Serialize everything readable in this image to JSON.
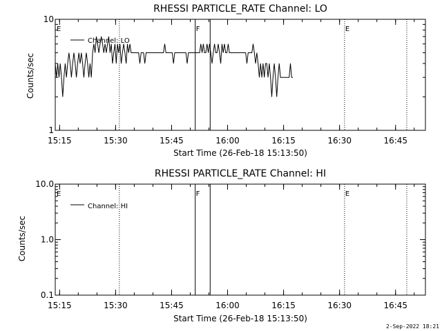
{
  "footer_timestamp": "2-Sep-2022 18:21",
  "chart_data": [
    {
      "type": "line",
      "title": "RHESSI PARTICLE_RATE Channel: LO",
      "xlabel": "Start Time (26-Feb-18 15:13:50)",
      "ylabel": "Counts/sec",
      "yscale": "log",
      "ylim": [
        1,
        10
      ],
      "xlim": [
        "15:13:50",
        "16:53:00"
      ],
      "x_ticks": [
        "15:15",
        "15:30",
        "15:45",
        "16:00",
        "16:15",
        "16:30",
        "16:45"
      ],
      "y_ticks": [
        "1",
        "10"
      ],
      "legend": {
        "label": "Channel: LO",
        "placement": "top-left"
      },
      "series": [
        {
          "name": "Channel: LO",
          "x_start": "15:13:50",
          "x_step_seconds": 20,
          "values": [
            4,
            3,
            4,
            3,
            4,
            3,
            2,
            3,
            4,
            3,
            4,
            5,
            4,
            3,
            4,
            5,
            4,
            3,
            4,
            5,
            4,
            5,
            4,
            3,
            4,
            5,
            4,
            3,
            4,
            3,
            5,
            6,
            5,
            7,
            6,
            5,
            6,
            7,
            6,
            5,
            6,
            5,
            6,
            7,
            5,
            6,
            4,
            5,
            6,
            4,
            6,
            5,
            6,
            4,
            5,
            6,
            5,
            4,
            6,
            5,
            6,
            5,
            5,
            5,
            5,
            5,
            5,
            5,
            4,
            5,
            5,
            5,
            4,
            5,
            5,
            5,
            5,
            5,
            5,
            5,
            5,
            5,
            5,
            5,
            5,
            5,
            5,
            5,
            6,
            5,
            5,
            5,
            5,
            5,
            5,
            4,
            5,
            5,
            5,
            5,
            5,
            5,
            5,
            5,
            5,
            5,
            4,
            5,
            5,
            5,
            5,
            5,
            5,
            5,
            5,
            5,
            5,
            6,
            5,
            6,
            5,
            5,
            6,
            5,
            6,
            5,
            4,
            5,
            6,
            5,
            5,
            6,
            5,
            4,
            6,
            5,
            6,
            5,
            5,
            6,
            5,
            5,
            5,
            5,
            5,
            5,
            5,
            5,
            5,
            5,
            5,
            5,
            5,
            5,
            4,
            5,
            5,
            5,
            5,
            6,
            5,
            4,
            5,
            4,
            3,
            4,
            3,
            4,
            3,
            4,
            4,
            3,
            4,
            3,
            2,
            3,
            4,
            3,
            2,
            3,
            4,
            3,
            3,
            3,
            3,
            3,
            3,
            3,
            3,
            4,
            3,
            3
          ]
        }
      ],
      "annotations": [
        {
          "label": "E",
          "time": "15:13:50",
          "style": "marker"
        },
        {
          "time": "15:31:00",
          "style": "dotted"
        },
        {
          "label": "F",
          "time": "15:51:20",
          "style": "solid"
        },
        {
          "time": "15:55:20",
          "style": "solid"
        },
        {
          "label": "E",
          "time": "16:31:20",
          "style": "dotted"
        },
        {
          "time": "16:48:00",
          "style": "dotted"
        }
      ]
    },
    {
      "type": "line",
      "title": "RHESSI PARTICLE_RATE Channel: HI",
      "xlabel": "Start Time (26-Feb-18 15:13:50)",
      "ylabel": "Counts/sec",
      "yscale": "log",
      "ylim": [
        0.1,
        10
      ],
      "xlim": [
        "15:13:50",
        "16:53:00"
      ],
      "x_ticks": [
        "15:15",
        "15:30",
        "15:45",
        "16:00",
        "16:15",
        "16:30",
        "16:45"
      ],
      "y_ticks": [
        "0.1",
        "1.0",
        "10.0"
      ],
      "legend": {
        "label": "Channel: HI",
        "placement": "top-left"
      },
      "series": [
        {
          "name": "Channel: HI",
          "values": []
        }
      ],
      "annotations": [
        {
          "label": "E",
          "time": "15:13:50",
          "style": "marker"
        },
        {
          "time": "15:31:00",
          "style": "dotted"
        },
        {
          "label": "F",
          "time": "15:51:20",
          "style": "solid"
        },
        {
          "time": "15:55:20",
          "style": "solid"
        },
        {
          "label": "E",
          "time": "16:31:20",
          "style": "dotted"
        },
        {
          "time": "16:48:00",
          "style": "dotted"
        }
      ]
    }
  ]
}
